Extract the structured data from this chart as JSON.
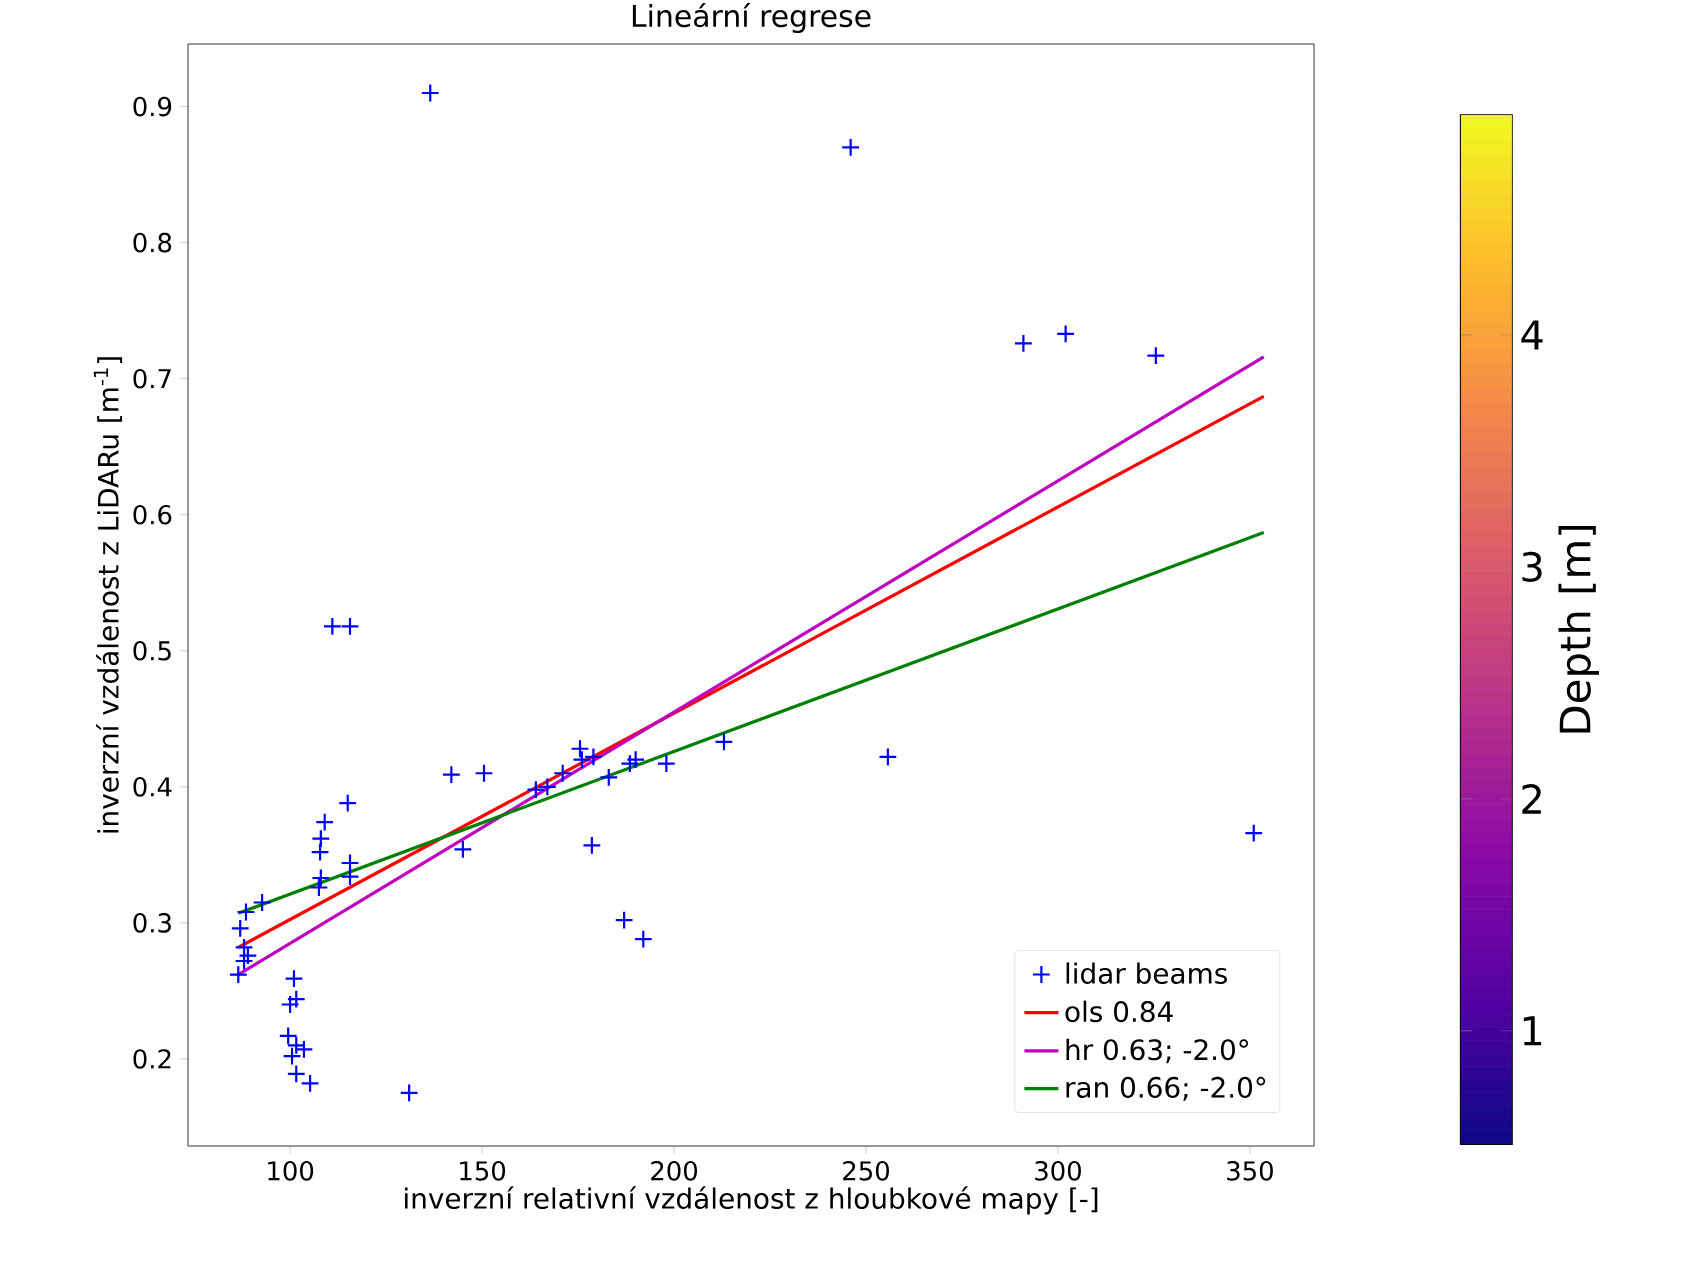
{
  "chart_data": {
    "type": "scatter",
    "title": "Lineární regrese",
    "xlabel": "inverzní relativní  vzdálenost z hloubkové mapy [-]",
    "ylabel": "inverzní vzdálenost z LiDARu [m$^{-1}$]",
    "clabel": "Depth [m]",
    "xlim": [
      73.4,
      366.7
    ],
    "ylim": [
      0.136,
      0.946
    ],
    "xticks": [
      100,
      150,
      200,
      250,
      300,
      350
    ],
    "yticks": [
      0.2,
      0.3,
      0.4,
      0.5,
      0.6,
      0.7,
      0.8,
      0.9
    ],
    "clim": [
      0.51,
      4.95
    ],
    "cticks": [
      1,
      2,
      3,
      4
    ],
    "legend": "bottom right",
    "grid": false,
    "series": [
      {
        "name": "lidar beams",
        "type": "scatter",
        "marker": "cross",
        "color": "#0000ff",
        "x": [
          136.5,
          246,
          291,
          302,
          325.5,
          351,
          255.7,
          213,
          198,
          190,
          188.5,
          183,
          179,
          175.5,
          176,
          171,
          167,
          164,
          178.6,
          187,
          192,
          131,
          142,
          150.5,
          145,
          111,
          115.6,
          115,
          109,
          108,
          107.8,
          108,
          107.5,
          115.6,
          115.6,
          87,
          88.5,
          92.7,
          86.5,
          88,
          89,
          88,
          101,
          100,
          101.6,
          99.5,
          101.6,
          103.6,
          100.5,
          101.6,
          105.2
        ],
        "values": [
          0.91,
          0.87,
          0.726,
          0.733,
          0.717,
          0.366,
          0.422,
          0.433,
          0.417,
          0.42,
          0.417,
          0.407,
          0.422,
          0.428,
          0.42,
          0.41,
          0.4,
          0.398,
          0.357,
          0.302,
          0.288,
          0.175,
          0.409,
          0.41,
          0.354,
          0.518,
          0.518,
          0.388,
          0.374,
          0.362,
          0.352,
          0.333,
          0.326,
          0.344,
          0.334,
          0.296,
          0.308,
          0.315,
          0.262,
          0.272,
          0.276,
          0.282,
          0.259,
          0.24,
          0.244,
          0.217,
          0.21,
          0.207,
          0.202,
          0.189,
          0.182
        ]
      },
      {
        "name": "ols 0.84",
        "type": "line",
        "color": "#ff0000",
        "x": [
          86.5,
          353.6
        ],
        "values": [
          0.282,
          0.687
        ]
      },
      {
        "name": "hr 0.63; -2.0°",
        "type": "line",
        "color": "#bf00bf",
        "x": [
          86.5,
          353.6
        ],
        "values": [
          0.262,
          0.716
        ]
      },
      {
        "name": "ran 0.66; -2.0°",
        "type": "line",
        "color": "#008000",
        "x": [
          86.5,
          353.6
        ],
        "values": [
          0.307,
          0.587
        ]
      }
    ]
  }
}
